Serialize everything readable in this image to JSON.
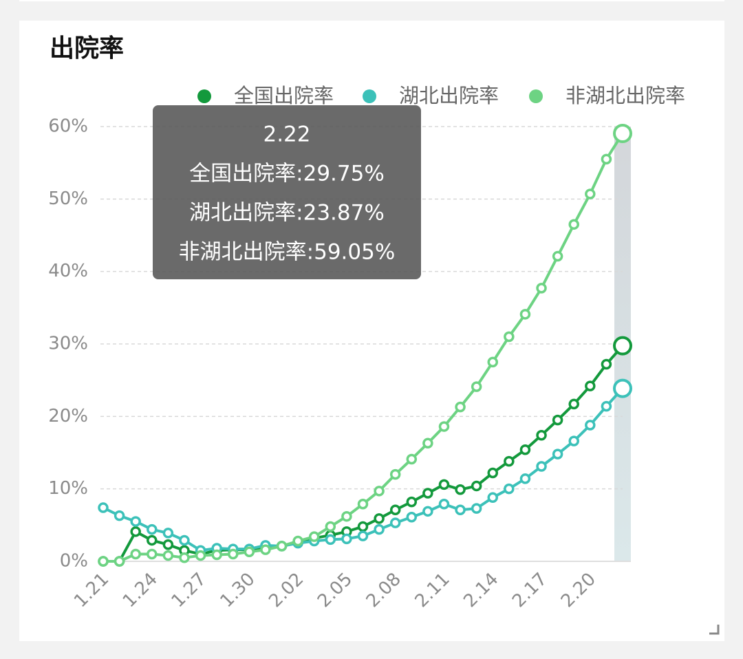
{
  "chart_data": {
    "type": "line",
    "title": "出院率",
    "categories": [
      "1.21",
      null,
      null,
      "1.24",
      null,
      null,
      "1.27",
      null,
      null,
      "1.30",
      null,
      null,
      "2.02",
      null,
      null,
      "2.05",
      null,
      null,
      "2.08",
      null,
      null,
      "2.11",
      null,
      null,
      "2.14",
      null,
      null,
      "2.17",
      null,
      null,
      "2.20",
      null,
      "2.22"
    ],
    "series": [
      {
        "name": "全国出院率",
        "color": "#13993c",
        "values": [
          0,
          0,
          4.1,
          2.9,
          2.3,
          1.5,
          1.0,
          1.5,
          1.6,
          1.6,
          1.8,
          2.1,
          2.7,
          3.2,
          3.6,
          4.1,
          4.8,
          5.9,
          7.1,
          8.2,
          9.4,
          10.6,
          9.9,
          10.4,
          12.2,
          13.8,
          15.4,
          17.4,
          19.5,
          21.7,
          24.2,
          27.2,
          29.75
        ]
      },
      {
        "name": "湖北出院率",
        "color": "#3cc1b9",
        "values": [
          7.4,
          6.3,
          5.5,
          4.4,
          3.9,
          2.9,
          1.5,
          1.8,
          1.7,
          1.7,
          2.2,
          2.1,
          2.5,
          2.8,
          3.0,
          3.1,
          3.5,
          4.4,
          5.3,
          6.1,
          6.9,
          7.9,
          7.1,
          7.3,
          8.8,
          10.0,
          11.4,
          13.1,
          14.8,
          16.6,
          18.8,
          21.4,
          23.87
        ]
      },
      {
        "name": "非湖北出院率",
        "color": "#6dd383",
        "values": [
          0,
          0,
          1.0,
          1.0,
          0.8,
          0.5,
          0.8,
          0.9,
          1.0,
          1.3,
          1.6,
          2.1,
          2.8,
          3.4,
          4.8,
          6.2,
          7.9,
          9.7,
          12.0,
          14.1,
          16.3,
          18.6,
          21.3,
          24.1,
          27.5,
          31.0,
          34.1,
          37.7,
          42.1,
          46.5,
          50.7,
          55.5,
          59.05
        ]
      }
    ],
    "ylim": [
      0,
      60
    ],
    "yticks": [
      {
        "value": 0,
        "label": "0%"
      },
      {
        "value": 10,
        "label": "10%"
      },
      {
        "value": 20,
        "label": "20%"
      },
      {
        "value": 30,
        "label": "30%"
      },
      {
        "value": 40,
        "label": "40%"
      },
      {
        "value": 50,
        "label": "50%"
      },
      {
        "value": 60,
        "label": "60%"
      }
    ],
    "grid": true,
    "legend": "top-right",
    "tooltip": [
      "全国出院率:29.75%",
      "湖北出院率:23.87%",
      "非湖北出院率:59.05%"
    ]
  }
}
